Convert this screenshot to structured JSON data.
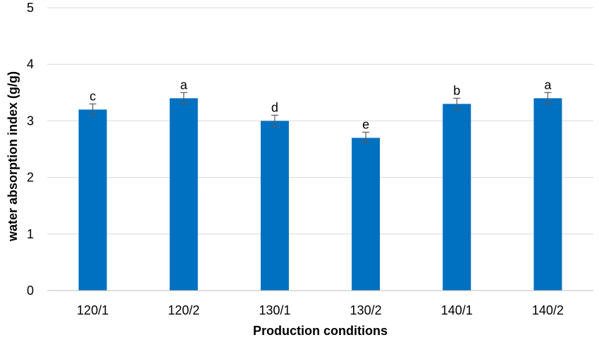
{
  "chart_data": {
    "type": "bar",
    "title": "",
    "xlabel": "Production conditions",
    "ylabel": "water absorption index (g/g)",
    "categories": [
      "120/1",
      "120/2",
      "130/1",
      "130/2",
      "140/1",
      "140/2"
    ],
    "values": [
      3.2,
      3.4,
      3.0,
      2.7,
      3.3,
      3.4
    ],
    "errors": [
      0.1,
      0.1,
      0.1,
      0.1,
      0.1,
      0.1
    ],
    "significance_letters": [
      "c",
      "a",
      "d",
      "e",
      "b",
      "a"
    ],
    "ylim": [
      0,
      5
    ],
    "yticks": [
      "0",
      "1",
      "2",
      "3",
      "4",
      "5"
    ],
    "grid": true,
    "legend": "none",
    "bar_color": "#0070C0",
    "grid_color": "#d9d9d9",
    "axis_color": "#bfbfbf",
    "errorbar_color": "#595959"
  }
}
